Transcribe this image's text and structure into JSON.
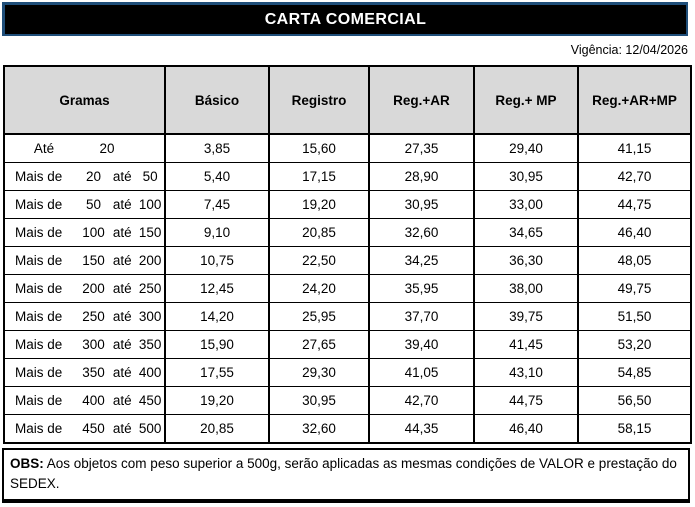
{
  "page": {
    "title": "CARTA COMERCIAL",
    "vigencia": "Vigência: 12/04/2026"
  },
  "colors": {
    "accent_blue": "#1F4E79",
    "header_gray": "#D9D9D9",
    "title_bar_bg": "#000000",
    "title_text": "#FFFFFF"
  },
  "table": {
    "headers": [
      "Gramas",
      "Básico",
      "Registro",
      "Reg.+AR",
      "Reg.+ MP",
      "Reg.+AR+MP"
    ],
    "rows": [
      {
        "prefix": "Até",
        "from": "",
        "mid": "",
        "to": "20",
        "basico": "3,85",
        "registro": "15,60",
        "reg_ar": "27,35",
        "reg_mp": "29,40",
        "reg_ar_mp": "41,15"
      },
      {
        "prefix": "Mais de",
        "from": "20",
        "mid": "até",
        "to": "50",
        "basico": "5,40",
        "registro": "17,15",
        "reg_ar": "28,90",
        "reg_mp": "30,95",
        "reg_ar_mp": "42,70"
      },
      {
        "prefix": "Mais de",
        "from": "50",
        "mid": "até",
        "to": "100",
        "basico": "7,45",
        "registro": "19,20",
        "reg_ar": "30,95",
        "reg_mp": "33,00",
        "reg_ar_mp": "44,75"
      },
      {
        "prefix": "Mais de",
        "from": "100",
        "mid": "até",
        "to": "150",
        "basico": "9,10",
        "registro": "20,85",
        "reg_ar": "32,60",
        "reg_mp": "34,65",
        "reg_ar_mp": "46,40"
      },
      {
        "prefix": "Mais de",
        "from": "150",
        "mid": "até",
        "to": "200",
        "basico": "10,75",
        "registro": "22,50",
        "reg_ar": "34,25",
        "reg_mp": "36,30",
        "reg_ar_mp": "48,05"
      },
      {
        "prefix": "Mais de",
        "from": "200",
        "mid": "até",
        "to": "250",
        "basico": "12,45",
        "registro": "24,20",
        "reg_ar": "35,95",
        "reg_mp": "38,00",
        "reg_ar_mp": "49,75"
      },
      {
        "prefix": "Mais de",
        "from": "250",
        "mid": "até",
        "to": "300",
        "basico": "14,20",
        "registro": "25,95",
        "reg_ar": "37,70",
        "reg_mp": "39,75",
        "reg_ar_mp": "51,50"
      },
      {
        "prefix": "Mais de",
        "from": "300",
        "mid": "até",
        "to": "350",
        "basico": "15,90",
        "registro": "27,65",
        "reg_ar": "39,40",
        "reg_mp": "41,45",
        "reg_ar_mp": "53,20"
      },
      {
        "prefix": "Mais de",
        "from": "350",
        "mid": "até",
        "to": "400",
        "basico": "17,55",
        "registro": "29,30",
        "reg_ar": "41,05",
        "reg_mp": "43,10",
        "reg_ar_mp": "54,85"
      },
      {
        "prefix": "Mais de",
        "from": "400",
        "mid": "até",
        "to": "450",
        "basico": "19,20",
        "registro": "30,95",
        "reg_ar": "42,70",
        "reg_mp": "44,75",
        "reg_ar_mp": "56,50"
      },
      {
        "prefix": "Mais de",
        "from": "450",
        "mid": "até",
        "to": "500",
        "basico": "20,85",
        "registro": "32,60",
        "reg_ar": "44,35",
        "reg_mp": "46,40",
        "reg_ar_mp": "58,15"
      }
    ]
  },
  "obs": {
    "label": "OBS:",
    "text": " Aos objetos com peso superior a 500g, serão aplicadas as mesmas condições de VALOR e prestação do SEDEX."
  }
}
